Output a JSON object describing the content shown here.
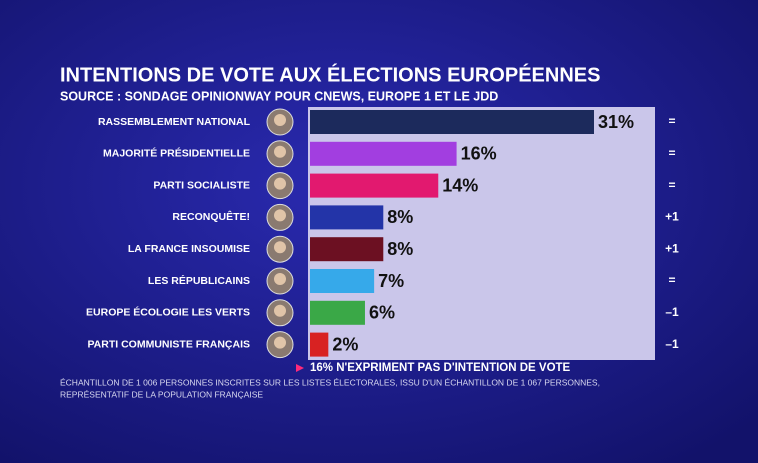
{
  "chart_data": {
    "type": "bar",
    "orientation": "horizontal",
    "title": "INTENTIONS DE VOTE AUX ÉLECTIONS EUROPÉENNES",
    "subtitle": "SOURCE : SONDAGE OPINIONWAY POUR CNEWS, EUROPE 1 ET LE JDD",
    "categories": [
      "RASSEMBLEMENT NATIONAL",
      "MAJORITÉ PRÉSIDENTIELLE",
      "PARTI SOCIALISTE",
      "RECONQUÊTE!",
      "LA FRANCE INSOUMISE",
      "LES RÉPUBLICAINS",
      "EUROPE ÉCOLOGIE LES VERTS",
      "PARTI COMMUNISTE FRANÇAIS"
    ],
    "values": [
      31,
      16,
      14,
      8,
      8,
      7,
      6,
      2
    ],
    "value_labels": [
      "31%",
      "16%",
      "14%",
      "8%",
      "8%",
      "7%",
      "6%",
      "2%"
    ],
    "colors": [
      "#1c2a5c",
      "#a23ee0",
      "#e2196f",
      "#2334a8",
      "#6c1022",
      "#36a9ea",
      "#3aa847",
      "#d82222"
    ],
    "changes": [
      "=",
      "=",
      "=",
      "+1",
      "+1",
      "=",
      "–1",
      "–1"
    ],
    "annotation": "16% N'EXPRIMENT PAS D'INTENTION DE VOTE",
    "notes": [
      "ÉCHANTILLON DE 1 006 PERSONNES INSCRITES SUR LES LISTES ÉLECTORALES, ISSU D'UN ÉCHANTILLON DE 1 067 PERSONNES,",
      "REPRÉSENTATIF DE LA POPULATION FRANÇAISE"
    ]
  }
}
